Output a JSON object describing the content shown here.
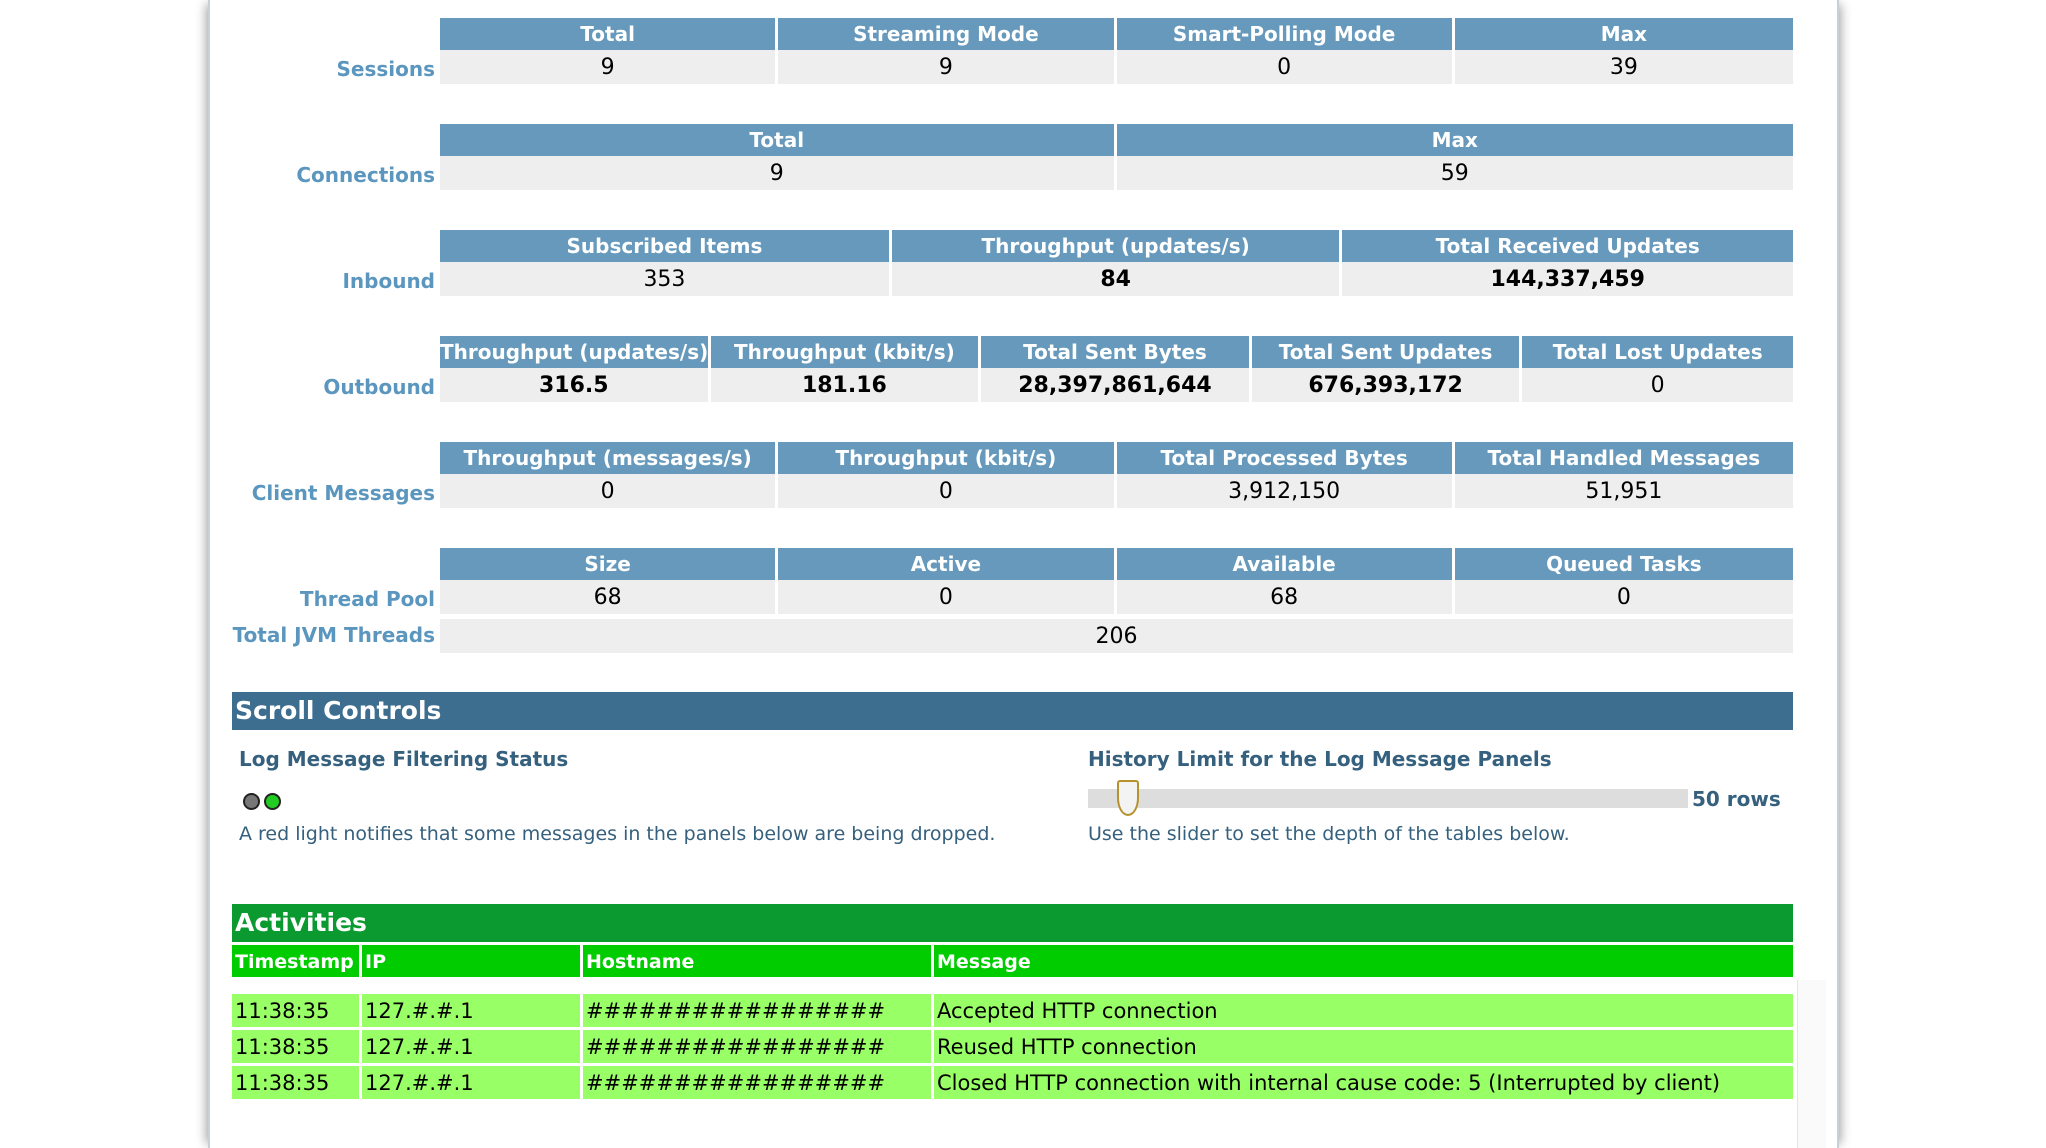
{
  "stats": {
    "sessions": {
      "label": "Sessions",
      "headers": [
        "Total",
        "Streaming Mode",
        "Smart-Polling Mode",
        "Max"
      ],
      "values": [
        "9",
        "9",
        "0",
        "39"
      ]
    },
    "connections": {
      "label": "Connections",
      "headers": [
        "Total",
        "Max"
      ],
      "values": [
        "9",
        "59"
      ]
    },
    "inbound": {
      "label": "Inbound",
      "headers": [
        "Subscribed Items",
        "Throughput (updates/s)",
        "Total Received Updates"
      ],
      "values": [
        "353",
        "84",
        "144,337,459"
      ]
    },
    "outbound": {
      "label": "Outbound",
      "headers": [
        "Throughput (updates/s)",
        "Throughput (kbit/s)",
        "Total Sent Bytes",
        "Total Sent Updates",
        "Total Lost Updates"
      ],
      "values": [
        "316.5",
        "181.16",
        "28,397,861,644",
        "676,393,172",
        "0"
      ]
    },
    "client_messages": {
      "label": "Client Messages",
      "headers": [
        "Throughput (messages/s)",
        "Throughput (kbit/s)",
        "Total Processed Bytes",
        "Total Handled Messages"
      ],
      "values": [
        "0",
        "0",
        "3,912,150",
        "51,951"
      ]
    },
    "thread_pool": {
      "label": "Thread Pool",
      "headers": [
        "Size",
        "Active",
        "Available",
        "Queued Tasks"
      ],
      "values": [
        "68",
        "0",
        "68",
        "0"
      ]
    },
    "jvm_threads": {
      "label": "Total JVM Threads",
      "value": "206"
    }
  },
  "scroll_controls": {
    "title": "Scroll Controls",
    "filter_title": "Log Message Filtering Status",
    "filter_note": "A red light notifies that some messages in the panels below are being dropped.",
    "history_title": "History Limit for the Log Message Panels",
    "history_note": "Use the slider to set the depth of the tables below.",
    "history_value": "50 rows",
    "history_level": 50,
    "light_colors": {
      "off": "#777777",
      "on": "#22cc22"
    }
  },
  "activities": {
    "title": "Activities",
    "columns": [
      "Timestamp",
      "IP",
      "Hostname",
      "Message"
    ],
    "rows": [
      [
        "11:38:35",
        "127.#.#.1",
        "#################",
        "Accepted HTTP connection"
      ],
      [
        "11:38:35",
        "127.#.#.1",
        "#################",
        "Reused HTTP connection"
      ],
      [
        "11:38:35",
        "127.#.#.1",
        "#################",
        "Closed HTTP connection with internal cause code: 5 (Interrupted by client)"
      ]
    ]
  },
  "colors": {
    "header_blue": "#6699bb",
    "section_blue": "#3d6e8f",
    "activities_green": "#0a9a2f",
    "activity_header_green": "#00cc00",
    "activity_row_green": "#99ff66"
  }
}
